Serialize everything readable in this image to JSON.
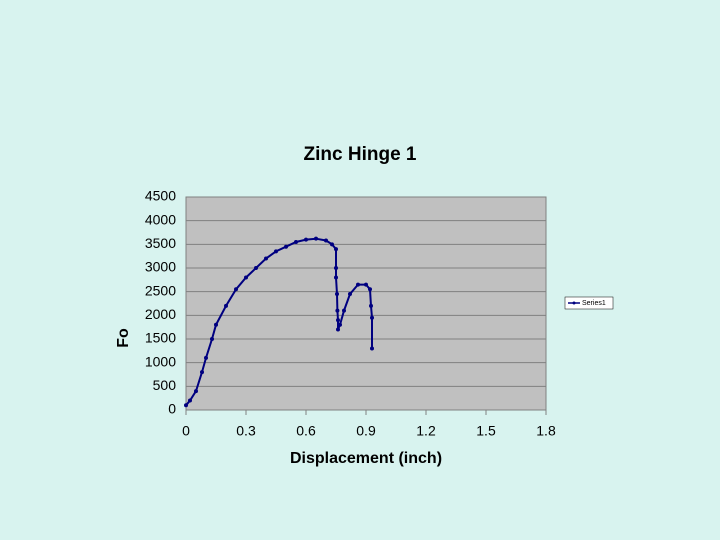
{
  "chart_data": {
    "type": "scatter",
    "title": "Zinc Hinge 1",
    "x_label": "Displacement (inch)",
    "y_label": "Fo",
    "x": [
      0,
      0.02,
      0.05,
      0.08,
      0.1,
      0.13,
      0.15,
      0.2,
      0.25,
      0.3,
      0.35,
      0.4,
      0.45,
      0.5,
      0.55,
      0.6,
      0.65,
      0.7,
      0.73,
      0.75,
      0.75,
      0.75,
      0.755,
      0.757,
      0.76,
      0.76,
      0.77,
      0.79,
      0.82,
      0.86,
      0.9,
      0.92,
      0.925,
      0.93,
      0.93
    ],
    "series": [
      {
        "name": "Series1",
        "color": "#000080",
        "values": [
          100,
          200,
          400,
          800,
          1100,
          1500,
          1800,
          2200,
          2550,
          2800,
          3000,
          3200,
          3350,
          3450,
          3550,
          3600,
          3620,
          3580,
          3500,
          3400,
          3000,
          2800,
          2450,
          2100,
          1900,
          1700,
          1800,
          2100,
          2450,
          2650,
          2650,
          2550,
          2200,
          1950,
          1300
        ]
      }
    ],
    "xlim": [
      0,
      1.8
    ],
    "xticks": [
      0,
      0.3,
      0.6,
      0.9,
      1.2,
      1.5,
      1.8
    ],
    "ylim": [
      0,
      4500
    ],
    "yticks": [
      0,
      500,
      1000,
      1500,
      2000,
      2500,
      3000,
      3500,
      4000,
      4500
    ],
    "grid": true,
    "legend": "right"
  }
}
